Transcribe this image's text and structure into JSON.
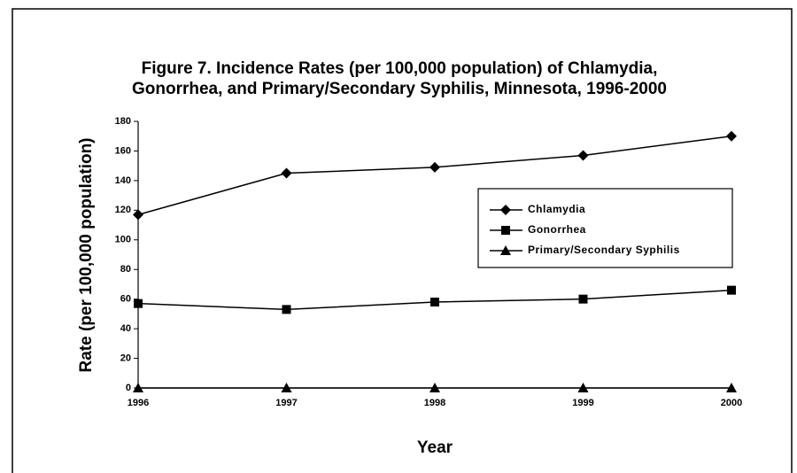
{
  "chart_data": {
    "type": "line",
    "title": "Figure 7.  Incidence Rates (per 100,000 population) of Chlamydia,",
    "subtitle": "Gonorrhea, and Primary/Secondary Syphilis, Minnesota, 1996-2000",
    "x_label": "Year",
    "y_label": "Rate (per 100,000 population)",
    "x": [
      1996,
      1997,
      1998,
      1999,
      2000
    ],
    "xlim": [
      1996,
      2000
    ],
    "xticks": [
      1996,
      1997,
      1998,
      1999,
      2000
    ],
    "ylim": [
      0,
      180
    ],
    "yticks": [
      0,
      20,
      40,
      60,
      80,
      100,
      120,
      140,
      160,
      180
    ],
    "grid": false,
    "legend": "right",
    "series": [
      {
        "name": "Chlamydia",
        "color": "#000000",
        "marker": "diamond",
        "values": [
          117,
          145,
          149,
          157,
          170
        ]
      },
      {
        "name": "Gonorrhea",
        "color": "#000000",
        "marker": "square",
        "values": [
          57,
          53,
          58,
          60,
          66
        ]
      },
      {
        "name": "Primary/Secondary Syphilis",
        "color": "#000000",
        "marker": "triangle",
        "values": [
          0,
          0,
          0,
          0,
          0
        ]
      }
    ]
  }
}
